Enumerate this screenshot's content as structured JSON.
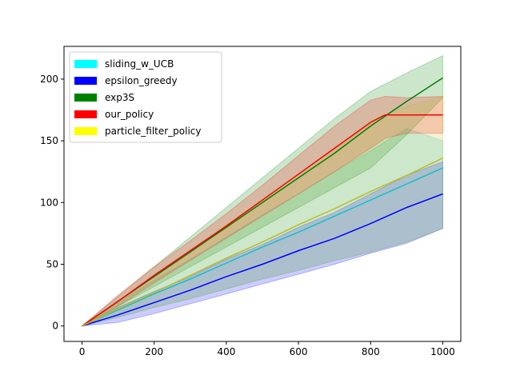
{
  "chart_data": {
    "type": "line",
    "title": "",
    "xlabel": "",
    "ylabel": "",
    "xlim": [
      -50,
      1050
    ],
    "ylim": [
      -12.5,
      226.5
    ],
    "xticks": [
      0,
      200,
      400,
      600,
      800,
      1000
    ],
    "yticks": [
      0,
      50,
      100,
      150,
      200
    ],
    "grid": false,
    "legend_position": "upper-left",
    "series": [
      {
        "name": "sliding_w_UCB",
        "color": "#17becf",
        "x": [
          0,
          100,
          200,
          300,
          400,
          500,
          600,
          700,
          800,
          900,
          1000
        ],
        "y": [
          0,
          13,
          26,
          38,
          51,
          64,
          76,
          89,
          102,
          115,
          128
        ],
        "lower": [
          0,
          7,
          15,
          22,
          30,
          38,
          45,
          53,
          60,
          68,
          79
        ],
        "upper": [
          0,
          19,
          37,
          54,
          72,
          90,
          107,
          125,
          142,
          160,
          150
        ]
      },
      {
        "name": "epsilon_greedy",
        "color": "#0000ff",
        "x": [
          0,
          100,
          200,
          300,
          400,
          500,
          600,
          700,
          800,
          900,
          1000
        ],
        "y": [
          0,
          9,
          19,
          29,
          40,
          50,
          61,
          71,
          83,
          96,
          107
        ],
        "lower": [
          0,
          3,
          10,
          18,
          26,
          34,
          42,
          50,
          59,
          67,
          79
        ],
        "upper": [
          0,
          15,
          28,
          40,
          54,
          66,
          80,
          92,
          107,
          122,
          133
        ]
      },
      {
        "name": "exp3S",
        "color": "#008000",
        "x": [
          0,
          100,
          200,
          300,
          400,
          500,
          600,
          700,
          800,
          900,
          1000
        ],
        "y": [
          0,
          20,
          40,
          60,
          80,
          100,
          120,
          140,
          162,
          182,
          201
        ],
        "lower": [
          0,
          16,
          32,
          48,
          64,
          80,
          96,
          112,
          128,
          155,
          185
        ],
        "upper": [
          0,
          24,
          48,
          72,
          96,
          120,
          144,
          168,
          190,
          205,
          219
        ]
      },
      {
        "name": "our_policy",
        "color": "#ff0000",
        "x": [
          0,
          100,
          200,
          300,
          400,
          500,
          600,
          700,
          800,
          840,
          900,
          1000
        ],
        "y": [
          0,
          20,
          41,
          61,
          81,
          102,
          123,
          144,
          165,
          171,
          171,
          171
        ],
        "lower": [
          0,
          16,
          35,
          53,
          71,
          89,
          107,
          125,
          144,
          152,
          156,
          156
        ],
        "upper": [
          0,
          25,
          48,
          69,
          91,
          114,
          138,
          162,
          183,
          186,
          185,
          186
        ]
      },
      {
        "name": "particle_filter_policy",
        "color": "#bcbd22",
        "x": [
          0,
          100,
          200,
          300,
          400,
          500,
          600,
          700,
          800,
          900,
          1000
        ],
        "y": [
          0,
          14,
          27,
          41,
          55,
          68,
          82,
          95,
          109,
          122,
          136
        ],
        "lower": [
          0,
          7,
          15,
          22,
          30,
          38,
          45,
          53,
          60,
          68,
          79
        ],
        "upper": [
          0,
          19,
          41,
          61,
          82,
          102,
          123,
          143,
          166,
          178,
          186
        ]
      }
    ],
    "legend": [
      {
        "label": "sliding_w_UCB",
        "color": "#00ffff"
      },
      {
        "label": "epsilon_greedy",
        "color": "#0000ff"
      },
      {
        "label": "exp3S",
        "color": "#008000"
      },
      {
        "label": "our_policy",
        "color": "#ff0000"
      },
      {
        "label": "particle_filter_policy",
        "color": "#ffff00"
      }
    ]
  }
}
